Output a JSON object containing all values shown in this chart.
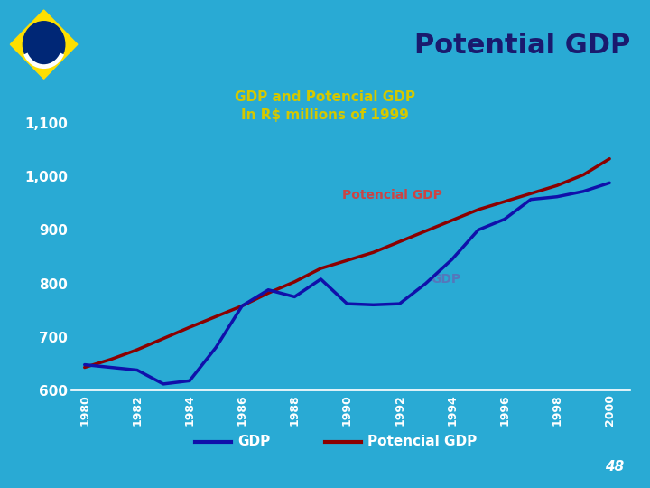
{
  "title": "Potential GDP",
  "subtitle_line1": "GDP and Potencial GDP",
  "subtitle_line2": "In R$ millions of 1999",
  "years": [
    1980,
    1981,
    1982,
    1983,
    1984,
    1985,
    1986,
    1987,
    1988,
    1989,
    1990,
    1991,
    1992,
    1993,
    1994,
    1995,
    1996,
    1997,
    1998,
    1999,
    2000
  ],
  "gdp": [
    648,
    643,
    638,
    612,
    618,
    680,
    758,
    788,
    775,
    808,
    762,
    760,
    762,
    800,
    845,
    900,
    920,
    957,
    962,
    972,
    988
  ],
  "potencial_gdp": [
    643,
    658,
    676,
    697,
    718,
    738,
    758,
    782,
    803,
    828,
    843,
    858,
    878,
    898,
    918,
    938,
    953,
    968,
    983,
    1003,
    1033
  ],
  "ylim": [
    600,
    1120
  ],
  "yticks": [
    600,
    700,
    800,
    900,
    1000,
    1100
  ],
  "ytick_labels": [
    "600",
    "700",
    "800",
    "900",
    "1,000",
    "1,100"
  ],
  "gdp_color": "#1010aa",
  "potencial_color": "#8b0000",
  "bg_color": "#29aad4",
  "header_bg": "#b8d8ee",
  "title_color": "#1a1a6e",
  "subtitle_color": "#d4c800",
  "tick_label_color": "#ffffff",
  "annotation_gdp_color": "#5577bb",
  "annotation_pot_color": "#cc4444",
  "page_number": "48",
  "line_width": 2.5,
  "flag_green": "#009c3b",
  "flag_yellow": "#FEDF00",
  "flag_blue": "#002776"
}
